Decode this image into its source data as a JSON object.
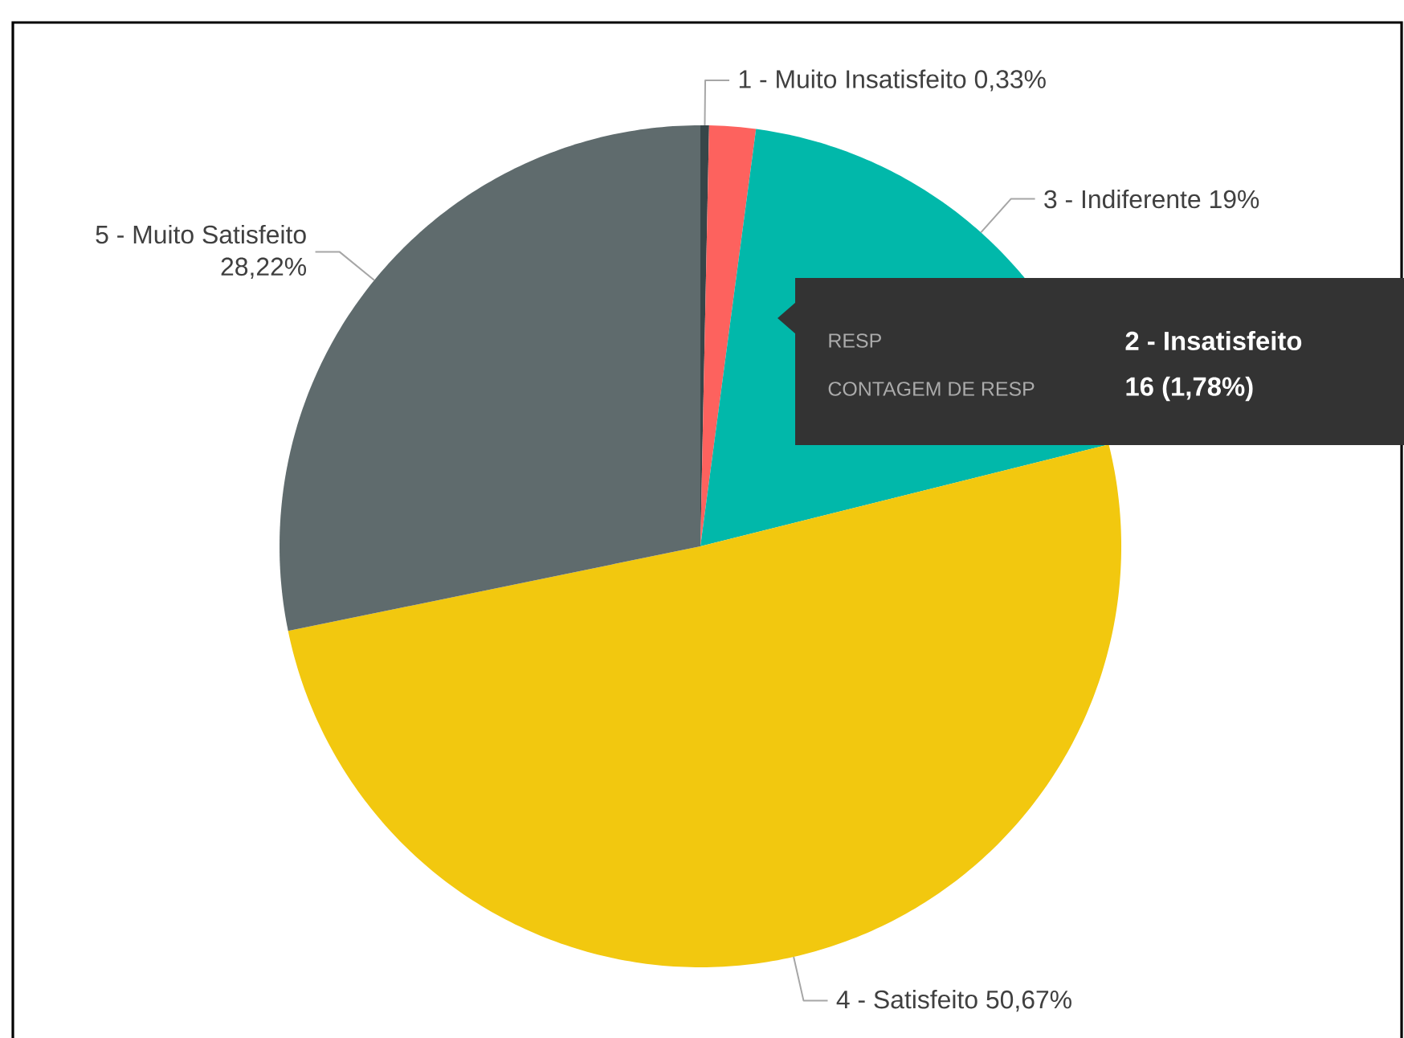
{
  "chart_data": {
    "type": "pie",
    "categories": [
      "1 - Muito Insatisfeito",
      null,
      "3 - Indiferente",
      "4 - Satisfeito",
      "5 - Muito Satisfeito"
    ],
    "values": [
      0.33,
      1.78,
      19,
      50.67,
      28.22
    ],
    "colors": [
      "#374649",
      "#fd625e",
      "#01b8aa",
      "#f2c80f",
      "#5f6b6d"
    ],
    "value_labels": [
      "0,33%",
      null,
      "19%",
      "50,67%",
      "28,22%"
    ],
    "annotations": [
      "RESP",
      "2 - Insatisfeito",
      "CONTAGEM DE RESP",
      "16 (1,78%)"
    ]
  }
}
